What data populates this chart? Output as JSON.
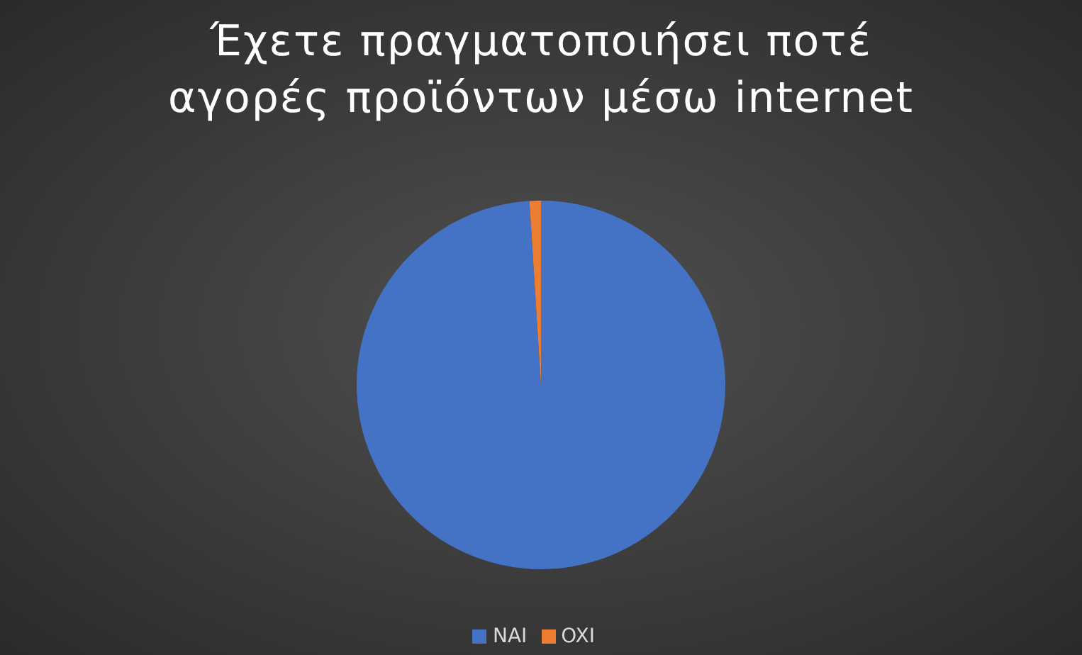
{
  "chart_data": {
    "type": "pie",
    "title": "Έχετε πραγματοποιήσει ποτέ αγορές προϊόντων μέσω internet",
    "categories": [
      "NAI",
      "OXI"
    ],
    "values": [
      99,
      1
    ],
    "colors": [
      "#4472c4",
      "#ed7d31"
    ],
    "legend": "bottom"
  }
}
